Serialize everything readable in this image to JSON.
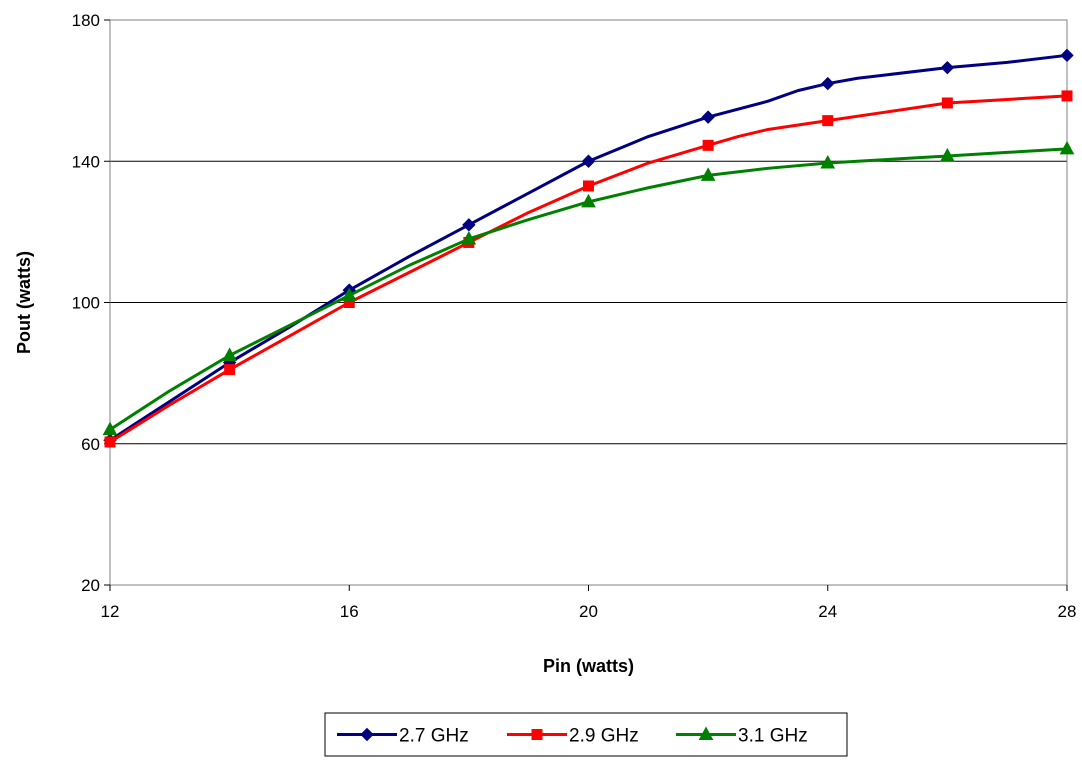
{
  "chart_data": {
    "type": "line",
    "title": "",
    "xlabel": "Pin (watts)",
    "ylabel": "Pout (watts)",
    "xlim": [
      12,
      28
    ],
    "ylim": [
      20,
      180
    ],
    "x_ticks": [
      12,
      16,
      20,
      24,
      28
    ],
    "y_ticks": [
      20,
      60,
      100,
      140,
      180
    ],
    "grid": "horizontal",
    "legend_position": "bottom",
    "series": [
      {
        "name": "2.7 GHz",
        "color": "#000080",
        "marker": "diamond",
        "x": [
          12,
          13,
          14,
          15,
          16,
          17,
          18,
          19,
          20,
          21,
          22,
          23,
          23.5,
          24,
          24.5,
          25,
          26,
          27,
          28
        ],
        "y": [
          61,
          72,
          83,
          93,
          103.5,
          113,
          122,
          131,
          140,
          147,
          152.5,
          157,
          160,
          162,
          163.5,
          164.5,
          166.5,
          168,
          170
        ],
        "markers_at": [
          12,
          14,
          16,
          18,
          20,
          22,
          24,
          26,
          28
        ]
      },
      {
        "name": "2.9 GHz",
        "color": "#FF0000",
        "marker": "square",
        "x": [
          12,
          13,
          14,
          15,
          16,
          17,
          18,
          19,
          20,
          21,
          22,
          22.5,
          23,
          24,
          25,
          26,
          27,
          28
        ],
        "y": [
          60.5,
          71,
          81,
          90.5,
          100,
          108.5,
          117,
          125.5,
          133,
          139.5,
          144.5,
          147,
          149,
          151.5,
          154,
          156.5,
          157.5,
          158.5
        ],
        "markers_at": [
          12,
          14,
          16,
          18,
          20,
          22,
          24,
          26,
          28
        ]
      },
      {
        "name": "3.1 GHz",
        "color": "#008000",
        "marker": "triangle",
        "x": [
          12,
          13,
          14,
          15,
          16,
          17,
          18,
          19,
          20,
          21,
          22,
          23,
          24,
          25,
          26,
          27,
          28
        ],
        "y": [
          64,
          75,
          85,
          93.5,
          102,
          110.5,
          118,
          123.5,
          128.5,
          132.5,
          136,
          138,
          139.5,
          140.5,
          141.5,
          142.5,
          143.5
        ],
        "markers_at": [
          12,
          14,
          16,
          18,
          20,
          22,
          24,
          26,
          28
        ]
      }
    ]
  }
}
